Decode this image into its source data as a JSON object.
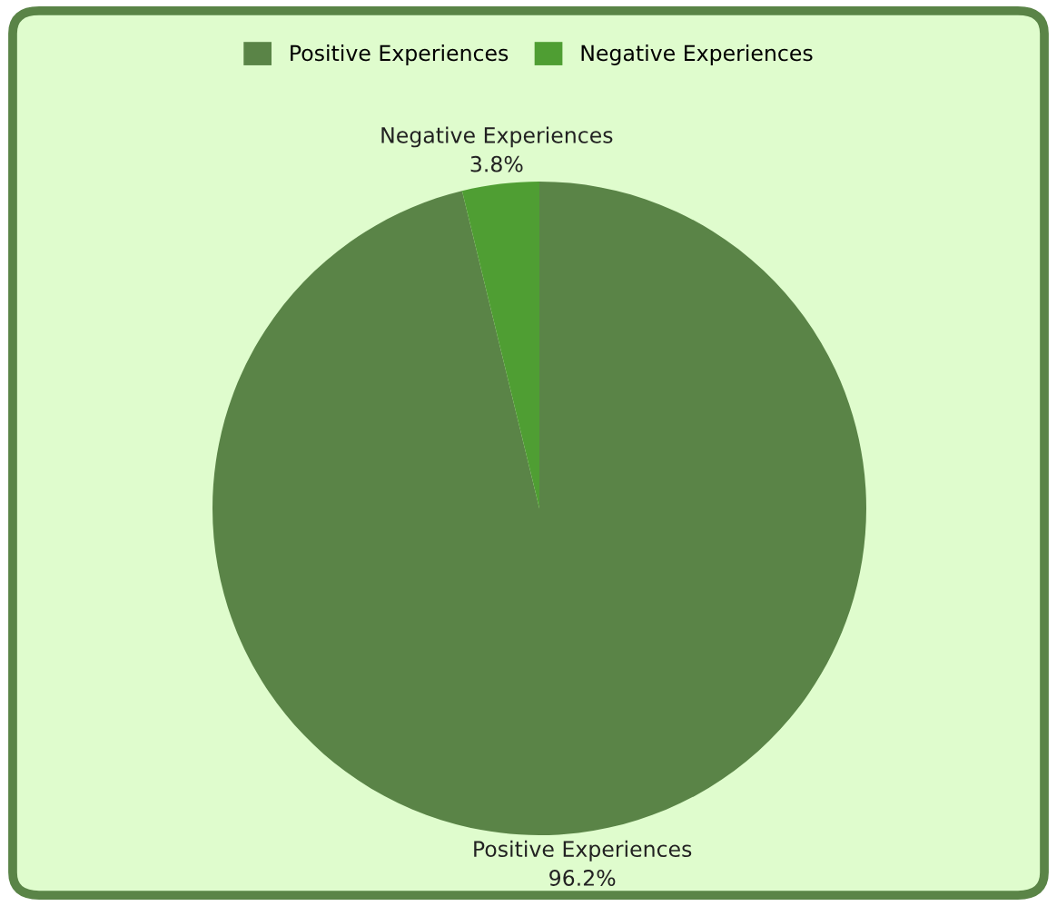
{
  "chart_data": {
    "type": "pie",
    "categories": [
      "Positive Experiences",
      "Negative Experiences"
    ],
    "values": [
      96.2,
      3.8
    ],
    "colors": [
      "#5a8447",
      "#4f9e33"
    ],
    "value_labels": [
      "96.2%",
      "3.8%"
    ],
    "legend": "top"
  }
}
